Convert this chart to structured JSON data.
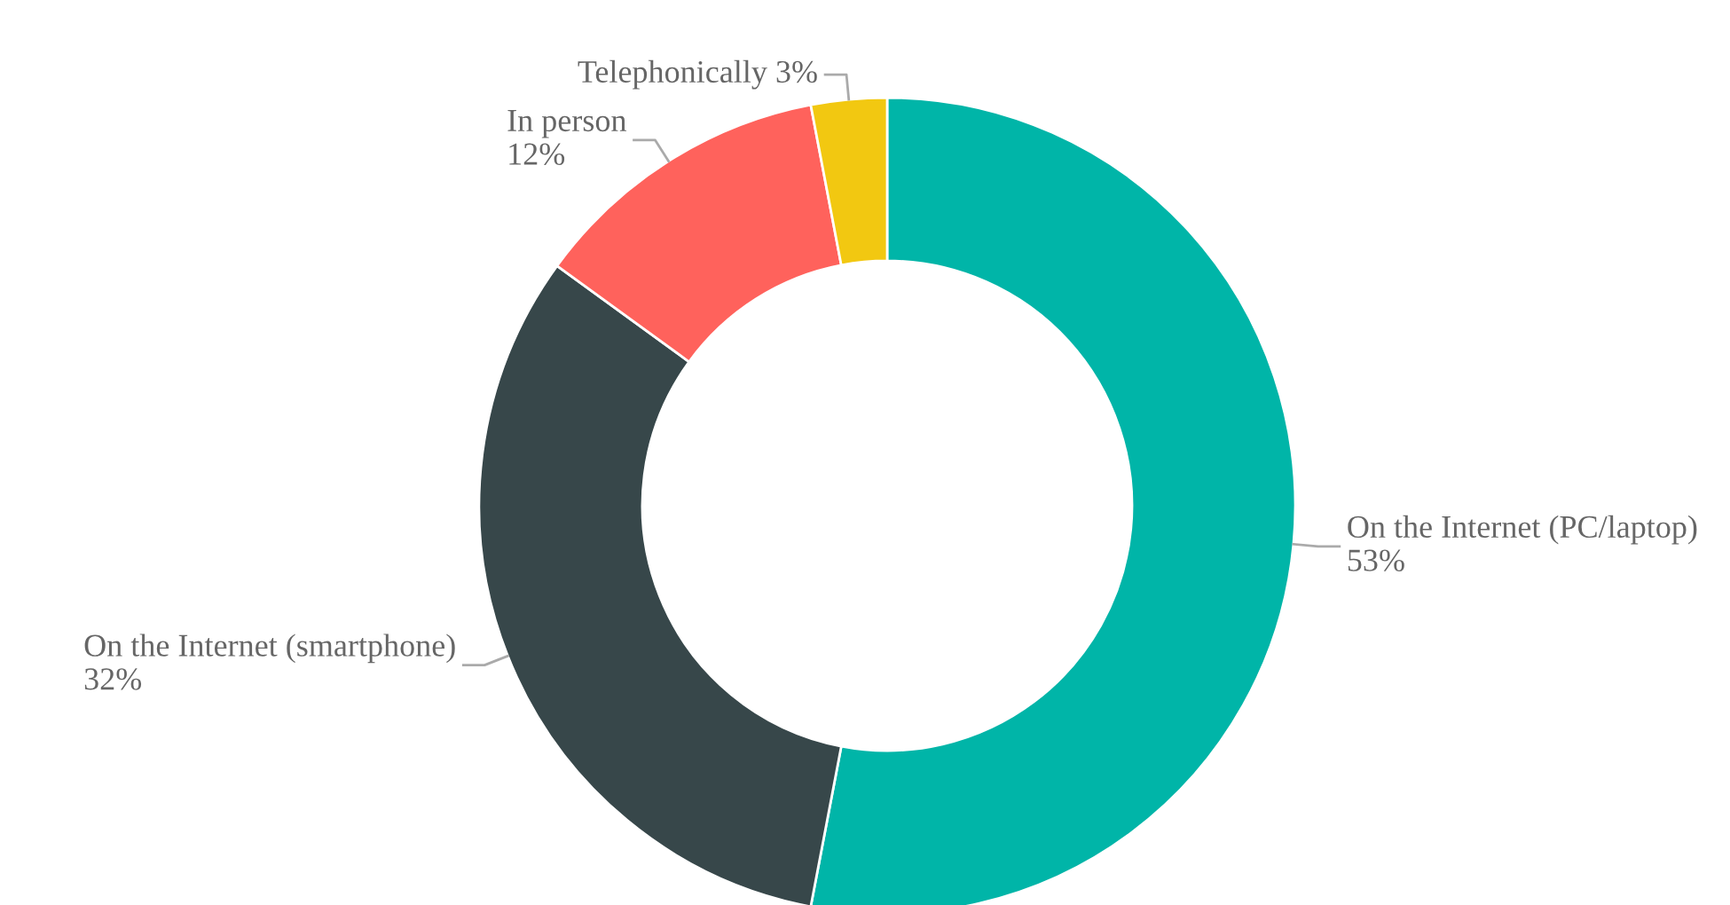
{
  "chart_data": {
    "type": "donut",
    "categories": [
      "On the Internet (PC/laptop)",
      "On the Internet (smartphone)",
      "In person",
      "Telephonically"
    ],
    "values": [
      53,
      32,
      12,
      3
    ],
    "value_labels": [
      "53%",
      "32%",
      "12%",
      "3%"
    ],
    "colors": [
      "#00b5a8",
      "#37474a",
      "#ff625c",
      "#f2c811"
    ],
    "legend": false
  }
}
